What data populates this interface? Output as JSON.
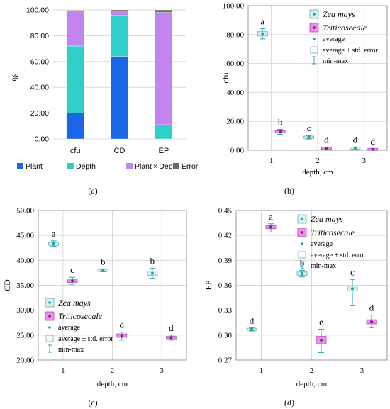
{
  "figure": {
    "panel_labels": [
      "(a)",
      "(b)",
      "(c)",
      "(d)"
    ]
  },
  "colors": {
    "plant": "#1967e6",
    "depth": "#2ecfc8",
    "plant_x_depth": "#c184f0",
    "error": "#6b6b6b",
    "zea_box": "#d8eef0",
    "zea_edge": "#6fa8ad",
    "zea_dot": "#1aa7a0",
    "triti_box": "#ee8cec",
    "triti_edge": "#b055b0",
    "triti_dot": "#6a2c8a",
    "whisker": "#2aa8b0",
    "grid": "#d8d8d8",
    "axis": "#9a9a9a"
  },
  "chart_data": [
    {
      "panel": "(a)",
      "type": "bar",
      "stacked": true,
      "ylabel": "%",
      "categories": [
        "cfu",
        "CD",
        "EP"
      ],
      "ylim": [
        0,
        100
      ],
      "yticks": [
        "0.00",
        "20.00",
        "40.00",
        "60.00",
        "80.00",
        "100.00"
      ],
      "series": [
        {
          "name": "Plant",
          "values": [
            20,
            64,
            0
          ],
          "color_key": "plant"
        },
        {
          "name": "Depth",
          "values": [
            52,
            32,
            11
          ],
          "color_key": "depth"
        },
        {
          "name": "Plant × Depth",
          "values": [
            27.6,
            3.2,
            87
          ],
          "color_key": "plant_x_depth"
        },
        {
          "name": "Error",
          "values": [
            0.4,
            0.8,
            2
          ],
          "color_key": "error"
        }
      ],
      "legend_position": "bottom"
    },
    {
      "panel": "(b)",
      "type": "box",
      "ylabel": "cfu",
      "xlabel": "depth, cm",
      "x": [
        "1",
        "2",
        "3"
      ],
      "ylim": [
        0,
        100
      ],
      "yticks": [
        "0.00",
        "20.00",
        "40.00",
        "60.00",
        "80.00",
        "100.00"
      ],
      "series": [
        {
          "name": "Zea mays",
          "points": [
            {
              "depth": 1,
              "mean": 80.5,
              "se_low": 79.0,
              "se_high": 82.0,
              "min": 77.0,
              "max": 84.0,
              "letter": "a"
            },
            {
              "depth": 2,
              "mean": 9.0,
              "se_low": 8.2,
              "se_high": 9.8,
              "min": 7.8,
              "max": 10.2,
              "letter": "c"
            },
            {
              "depth": 3,
              "mean": 1.5,
              "se_low": 1.0,
              "se_high": 2.0,
              "min": 0.7,
              "max": 2.3,
              "letter": "d"
            }
          ]
        },
        {
          "name": "Triticosecale",
          "points": [
            {
              "depth": 1,
              "mean": 12.8,
              "se_low": 12.0,
              "se_high": 13.6,
              "min": 11.0,
              "max": 14.5,
              "letter": "b"
            },
            {
              "depth": 2,
              "mean": 1.3,
              "se_low": 0.9,
              "se_high": 1.7,
              "min": 0.4,
              "max": 2.2,
              "letter": "d"
            },
            {
              "depth": 3,
              "mean": 0.6,
              "se_low": 0.3,
              "se_high": 0.9,
              "min": 0.1,
              "max": 1.1,
              "letter": "d"
            }
          ]
        }
      ],
      "legend": {
        "position": "top-right",
        "items": [
          "Zea mays",
          "Triticosecale",
          "average",
          "average ± std. error",
          "min-max"
        ]
      }
    },
    {
      "panel": "(c)",
      "type": "box",
      "ylabel": "CD",
      "xlabel": "depth, cm",
      "x": [
        "1",
        "2",
        "3"
      ],
      "ylim": [
        20,
        50
      ],
      "yticks": [
        "20.00",
        "25.00",
        "30.00",
        "35.00",
        "40.00",
        "45.00",
        "50.00"
      ],
      "series": [
        {
          "name": "Zea mays",
          "points": [
            {
              "depth": 1,
              "mean": 43.3,
              "se_low": 43.0,
              "se_high": 43.6,
              "min": 42.8,
              "max": 43.9,
              "letter": "a"
            },
            {
              "depth": 2,
              "mean": 38.0,
              "se_low": 37.8,
              "se_high": 38.2,
              "min": 37.7,
              "max": 38.3,
              "letter": "b"
            },
            {
              "depth": 3,
              "mean": 37.4,
              "se_low": 37.0,
              "se_high": 37.9,
              "min": 36.4,
              "max": 38.4,
              "letter": "b"
            }
          ]
        },
        {
          "name": "Triticosecale",
          "points": [
            {
              "depth": 1,
              "mean": 35.9,
              "se_low": 35.6,
              "se_high": 36.3,
              "min": 35.2,
              "max": 36.6,
              "letter": "c"
            },
            {
              "depth": 2,
              "mean": 24.9,
              "se_low": 24.6,
              "se_high": 25.3,
              "min": 24.0,
              "max": 25.6,
              "letter": "d"
            },
            {
              "depth": 3,
              "mean": 24.5,
              "se_low": 24.2,
              "se_high": 24.7,
              "min": 24.0,
              "max": 25.0,
              "letter": "d"
            }
          ]
        }
      ],
      "legend": {
        "position": "bottom-left",
        "items": [
          "Zea mays",
          "Triticosecale",
          "average",
          "average ± std. error",
          "min-max"
        ]
      }
    },
    {
      "panel": "(d)",
      "type": "box",
      "ylabel": "EP",
      "xlabel": "depth, cm",
      "x": [
        "1",
        "2",
        "3"
      ],
      "ylim": [
        0.27,
        0.45
      ],
      "yticks": [
        "0.27",
        "0.30",
        "0.33",
        "0.36",
        "0.39",
        "0.42",
        "0.45"
      ],
      "series": [
        {
          "name": "Zea mays",
          "points": [
            {
              "depth": 1,
              "mean": 0.307,
              "se_low": 0.306,
              "se_high": 0.308,
              "min": 0.305,
              "max": 0.309,
              "letter": "d"
            },
            {
              "depth": 2,
              "mean": 0.374,
              "se_low": 0.372,
              "se_high": 0.376,
              "min": 0.37,
              "max": 0.378,
              "letter": "b"
            },
            {
              "depth": 3,
              "mean": 0.356,
              "se_low": 0.353,
              "se_high": 0.359,
              "min": 0.336,
              "max": 0.367,
              "letter": "c"
            }
          ]
        },
        {
          "name": "Triticosecale",
          "points": [
            {
              "depth": 1,
              "mean": 0.43,
              "se_low": 0.428,
              "se_high": 0.432,
              "min": 0.424,
              "max": 0.434,
              "letter": "a"
            },
            {
              "depth": 2,
              "mean": 0.294,
              "se_low": 0.289,
              "se_high": 0.298,
              "min": 0.279,
              "max": 0.307,
              "letter": "e"
            },
            {
              "depth": 3,
              "mean": 0.316,
              "se_low": 0.313,
              "se_high": 0.318,
              "min": 0.309,
              "max": 0.324,
              "letter": "d"
            }
          ]
        }
      ],
      "legend": {
        "position": "top-right",
        "items": [
          "Zea mays",
          "Triticosecale",
          "average",
          "average ± std. error",
          "min-max"
        ]
      }
    }
  ]
}
